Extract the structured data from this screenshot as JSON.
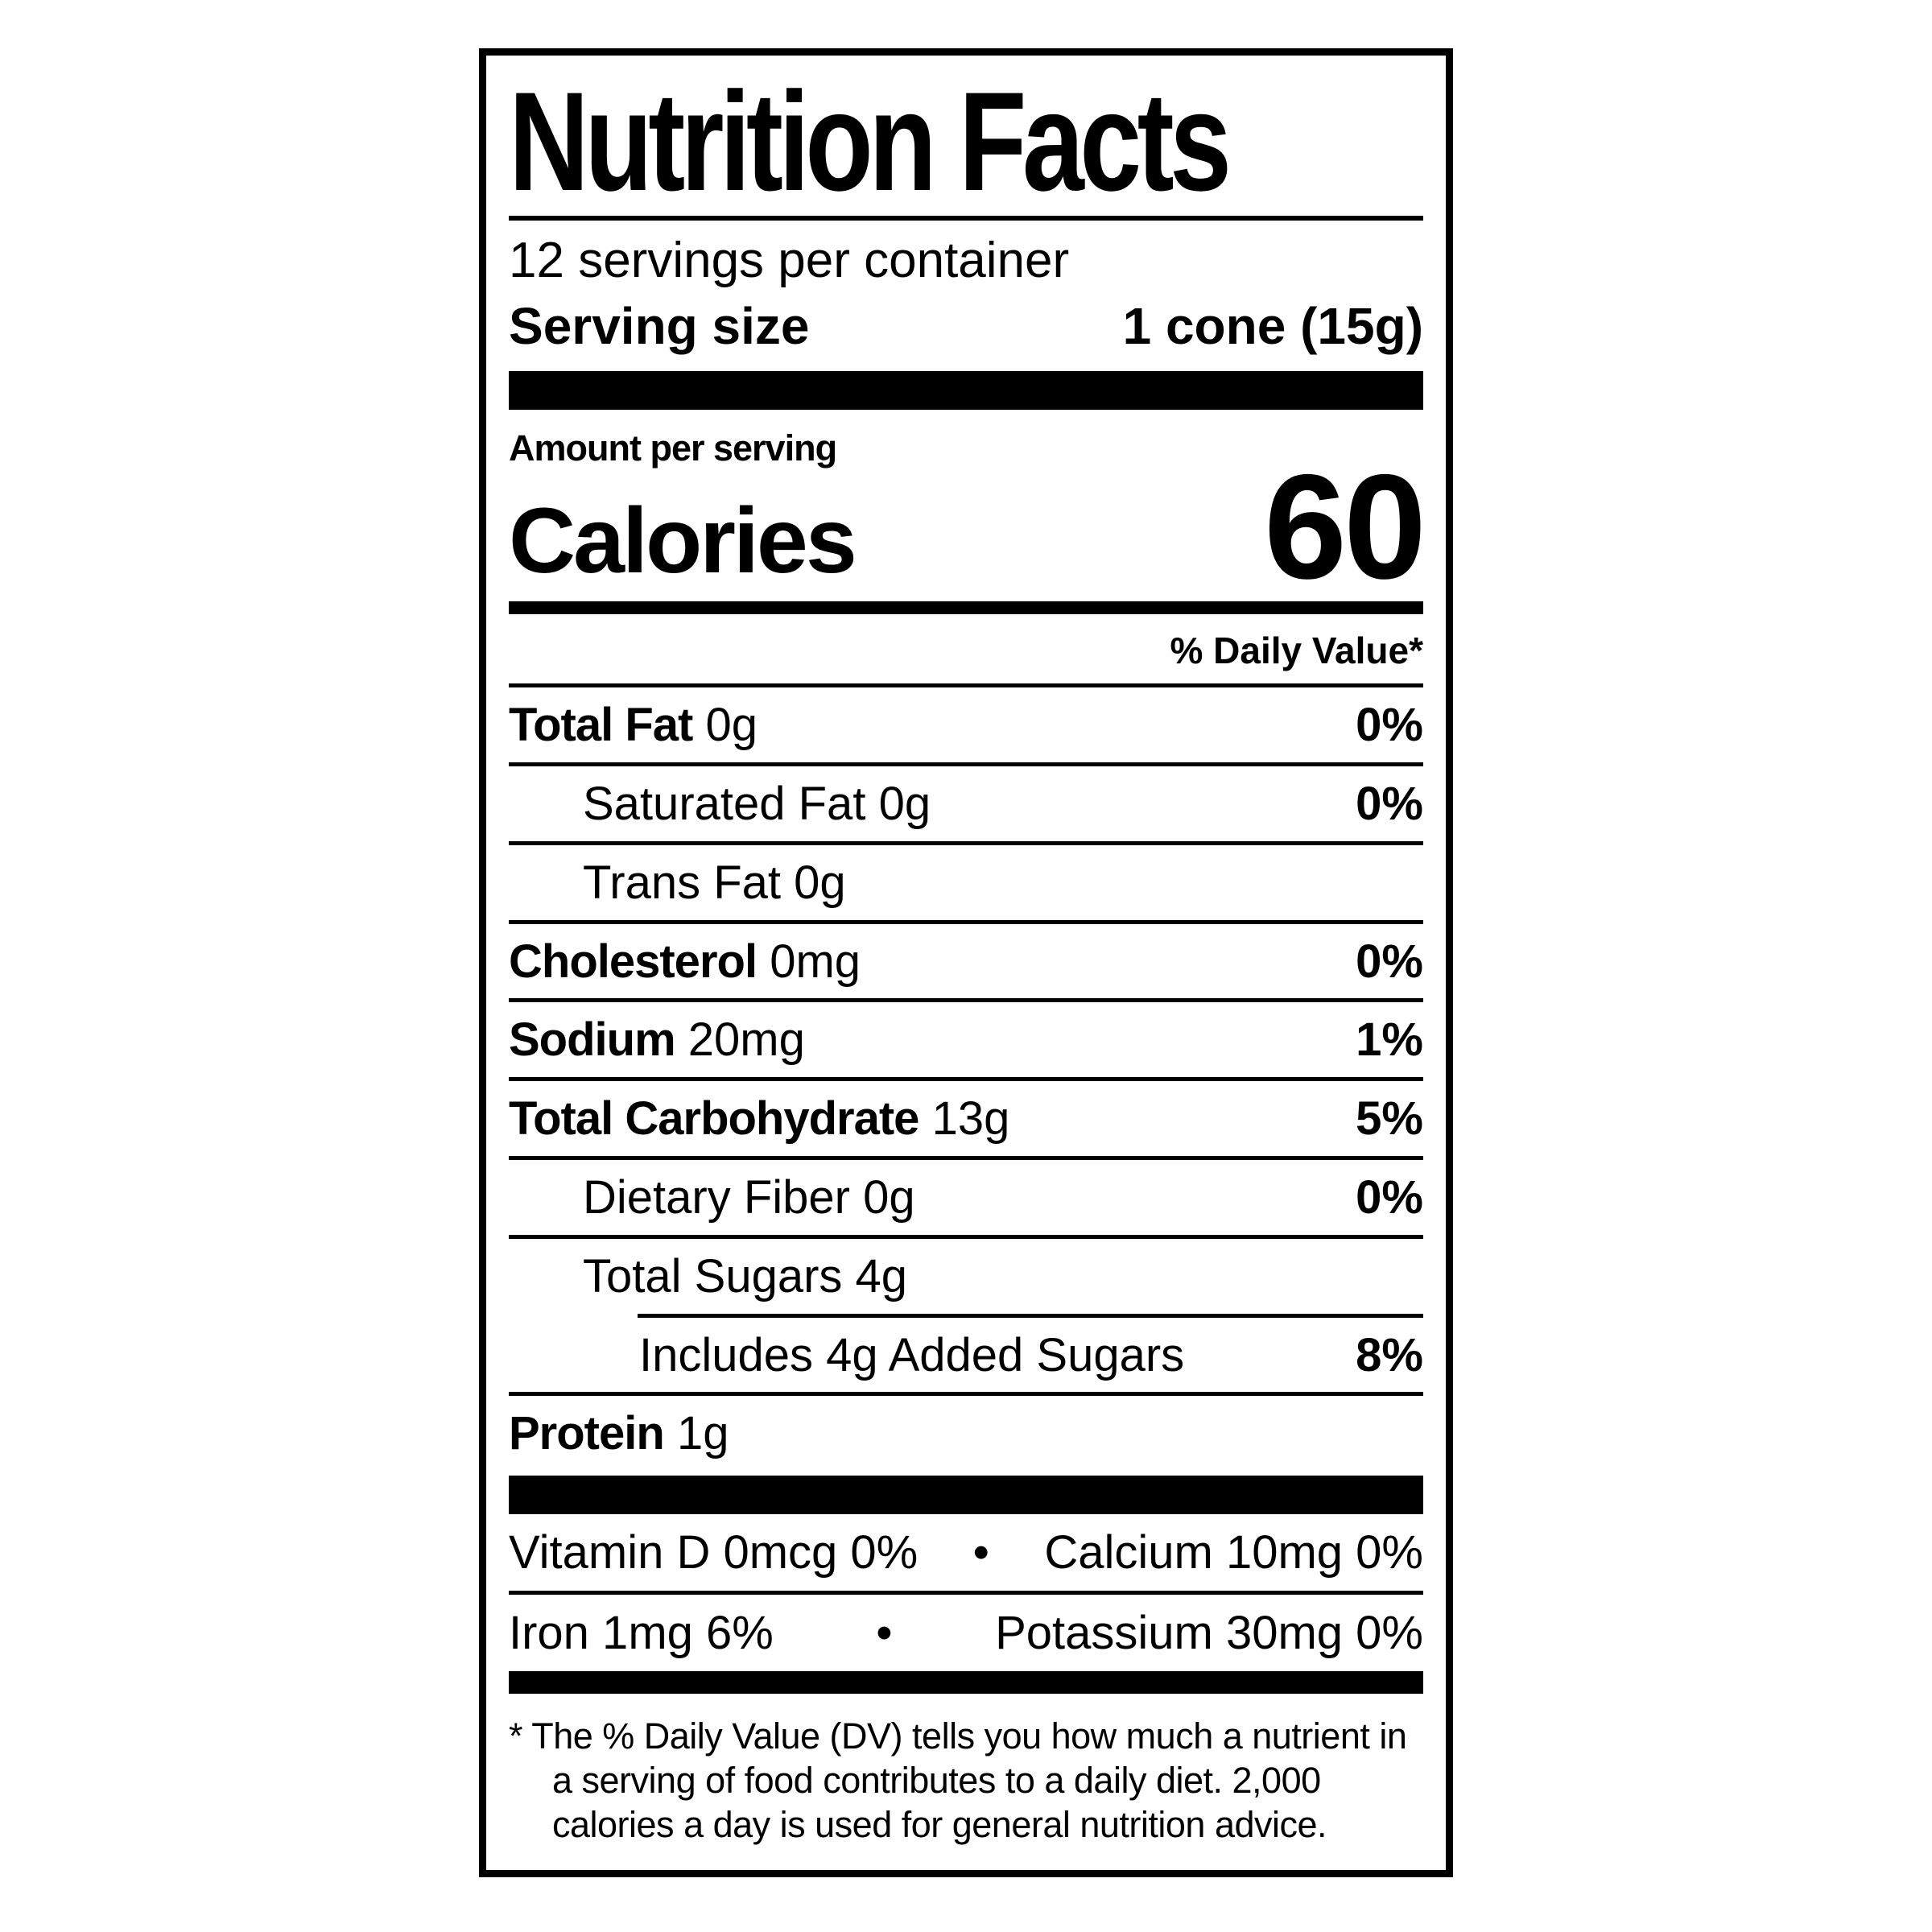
{
  "label": {
    "title": "Nutrition Facts",
    "servings_per_container": "12 servings per container",
    "serving_size_label": "Serving size",
    "serving_size_value": "1 cone (15g)",
    "amount_per_serving_label": "Amount per serving",
    "calories_label": "Calories",
    "calories_value": "60",
    "daily_value_header": "% Daily Value*",
    "nutrient_rows": [
      {
        "name": "Total Fat",
        "amount": "0g",
        "dv": "0%"
      },
      {
        "name": "Saturated Fat",
        "amount": "0g",
        "dv": "0%"
      },
      {
        "name": "Trans Fat",
        "amount": "0g",
        "dv": ""
      },
      {
        "name": "Cholesterol",
        "amount": "0mg",
        "dv": "0%"
      },
      {
        "name": "Sodium",
        "amount": "20mg",
        "dv": "1%"
      },
      {
        "name": "Total Carbohydrate",
        "amount": "13g",
        "dv": "5%"
      },
      {
        "name": "Dietary Fiber",
        "amount": "0g",
        "dv": "0%"
      },
      {
        "name": "Total Sugars",
        "amount": "4g",
        "dv": ""
      },
      {
        "name": "Includes 4g Added Sugars",
        "amount": "",
        "dv": "8%"
      },
      {
        "name": "Protein",
        "amount": "1g",
        "dv": ""
      }
    ],
    "micronutrient_rows": [
      {
        "left": "Vitamin D 0mcg 0%",
        "separator": "•",
        "right": "Calcium 10mg 0%"
      },
      {
        "left": "Iron 1mg 6%",
        "separator": "•",
        "right": "Potassium 30mg 0%"
      }
    ],
    "footnote_marker": "*",
    "footnote_text": "The % Daily Value (DV) tells you how much a nutrient in a serving of food contributes to a daily diet. 2,000 calories a day is used for general nutrition advice.",
    "colors": {
      "ink": "#000000",
      "paper": "#ffffff"
    }
  }
}
